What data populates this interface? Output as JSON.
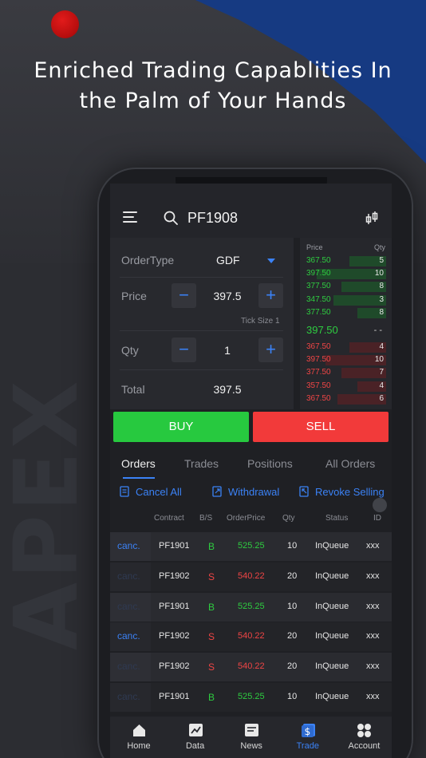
{
  "promo": {
    "headline_line1": "Enriched Trading Capablities In",
    "headline_line2": "the Palm of Your Hands",
    "watermark": "APEX"
  },
  "colors": {
    "accent_blue": "#3b82f6",
    "buy_green": "#27c93f",
    "sell_red": "#f23a3a",
    "bid_text_green": "#2ecc40",
    "ask_text_red": "#f04545",
    "corner_blue": "#163a82"
  },
  "header": {
    "symbol": "PF1908",
    "menu_icon": "hamburger-menu-icon",
    "search_icon": "search-icon",
    "chart_icon": "candlestick-chart-icon"
  },
  "order_form": {
    "order_type_label": "OrderType",
    "order_type_value": "GDF",
    "price_label": "Price",
    "price_value": "397.5",
    "tick_size": "Tick Size 1",
    "qty_label": "Qty",
    "qty_value": "1",
    "total_label": "Total",
    "total_value": "397.5",
    "minus": "−",
    "plus": "+"
  },
  "order_book": {
    "price_header": "Price",
    "qty_header": "Qty",
    "bids": [
      {
        "price": "367.50",
        "qty": "5",
        "depth": 0.45
      },
      {
        "price": "397.50",
        "qty": "10",
        "depth": 0.85
      },
      {
        "price": "377.50",
        "qty": "8",
        "depth": 0.55
      },
      {
        "price": "347.50",
        "qty": "3",
        "depth": 0.65
      },
      {
        "price": "377.50",
        "qty": "8",
        "depth": 0.35
      }
    ],
    "last_price": "397.50",
    "last_qty": "- -",
    "asks": [
      {
        "price": "367.50",
        "qty": "4",
        "depth": 0.45
      },
      {
        "price": "397.50",
        "qty": "10",
        "depth": 0.75
      },
      {
        "price": "377.50",
        "qty": "7",
        "depth": 0.55
      },
      {
        "price": "357.50",
        "qty": "4",
        "depth": 0.35
      },
      {
        "price": "367.50",
        "qty": "6",
        "depth": 0.6
      }
    ]
  },
  "trade_buttons": {
    "buy": "BUY",
    "sell": "SELL"
  },
  "tabs": [
    {
      "label": "Orders",
      "active": true
    },
    {
      "label": "Trades",
      "active": false
    },
    {
      "label": "Positions",
      "active": false
    },
    {
      "label": "All Orders",
      "active": false
    }
  ],
  "actions": {
    "cancel_all": "Cancel All",
    "withdrawal": "Withdrawal",
    "revoke_selling": "Revoke Selling"
  },
  "orders_table": {
    "headers": {
      "contract": "Contract",
      "bs": "B/S",
      "order_price": "OrderPrice",
      "qty": "Qty",
      "status": "Status",
      "id": "ID"
    },
    "rows": [
      {
        "cancel": "canc.",
        "cancel_enabled": true,
        "contract": "PF1901",
        "side": "B",
        "price": "525.25",
        "qty": "10",
        "status": "InQueue",
        "id": "xxx"
      },
      {
        "cancel": "canc.",
        "cancel_enabled": false,
        "contract": "PF1902",
        "side": "S",
        "price": "540.22",
        "qty": "20",
        "status": "InQueue",
        "id": "xxx"
      },
      {
        "cancel": "canc.",
        "cancel_enabled": false,
        "contract": "PF1901",
        "side": "B",
        "price": "525.25",
        "qty": "10",
        "status": "InQueue",
        "id": "xxx"
      },
      {
        "cancel": "canc.",
        "cancel_enabled": true,
        "contract": "PF1902",
        "side": "S",
        "price": "540.22",
        "qty": "20",
        "status": "InQueue",
        "id": "xxx"
      },
      {
        "cancel": "canc.",
        "cancel_enabled": false,
        "contract": "PF1902",
        "side": "S",
        "price": "540.22",
        "qty": "20",
        "status": "InQueue",
        "id": "xxx"
      },
      {
        "cancel": "canc.",
        "cancel_enabled": false,
        "contract": "PF1901",
        "side": "B",
        "price": "525.25",
        "qty": "10",
        "status": "InQueue",
        "id": "xxx"
      }
    ]
  },
  "bottom_nav": [
    {
      "label": "Home",
      "icon": "home-icon",
      "active": false
    },
    {
      "label": "Data",
      "icon": "line-chart-icon",
      "active": false
    },
    {
      "label": "News",
      "icon": "news-icon",
      "active": false
    },
    {
      "label": "Trade",
      "icon": "trade-dollar-icon",
      "active": true
    },
    {
      "label": "Account",
      "icon": "account-grid-icon",
      "active": false
    }
  ]
}
